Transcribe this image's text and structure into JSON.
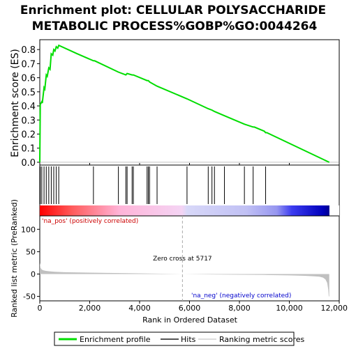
{
  "chart_data": {
    "type": "line",
    "title": "Enrichment plot: CELLULAR POLYSACCHARIDE\nMETABOLIC PROCESS%GOBP%GO:0044264",
    "colors": {
      "es_line": "#00dd00",
      "hits": "#000000",
      "metric_fill": "#c0c0c0",
      "pos_text": "#cc0000",
      "neg_text": "#0000cc",
      "zero_cross_line": "#aaaaaa"
    },
    "top_panel": {
      "ylabel": "Enrichment score (ES)",
      "ylim": [
        -0.02,
        0.87
      ],
      "yticks": [
        0.0,
        0.1,
        0.2,
        0.3,
        0.4,
        0.5,
        0.6,
        0.7,
        0.8
      ],
      "ytick_labels": [
        "0.0",
        "0.1",
        "0.2",
        "0.3",
        "0.4",
        "0.5",
        "0.6",
        "0.7",
        "0.8"
      ],
      "series": [
        {
          "name": "Enrichment profile",
          "x": [
            0,
            20,
            80,
            100,
            170,
            200,
            260,
            300,
            360,
            410,
            460,
            520,
            560,
            610,
            660,
            720,
            760,
            1500,
            2150,
            2200,
            3150,
            3450,
            3500,
            3700,
            3750,
            4300,
            4350,
            4400,
            4700,
            5900,
            6750,
            6900,
            7000,
            7400,
            8200,
            8550,
            8600,
            9000,
            9050,
            9100,
            11600
          ],
          "y": [
            0.0,
            0.41,
            0.43,
            0.42,
            0.53,
            0.52,
            0.62,
            0.61,
            0.67,
            0.66,
            0.77,
            0.76,
            0.8,
            0.79,
            0.82,
            0.81,
            0.83,
            0.77,
            0.72,
            0.72,
            0.64,
            0.62,
            0.63,
            0.62,
            0.62,
            0.58,
            0.58,
            0.57,
            0.54,
            0.45,
            0.38,
            0.37,
            0.36,
            0.33,
            0.27,
            0.25,
            0.25,
            0.22,
            0.21,
            0.21,
            0.0
          ]
        }
      ]
    },
    "hits": [
      20,
      80,
      170,
      260,
      360,
      460,
      560,
      660,
      760,
      2150,
      3150,
      3450,
      3500,
      3700,
      3750,
      4300,
      4350,
      4400,
      4700,
      5900,
      6750,
      6900,
      7000,
      7400,
      8200,
      8550,
      9050
    ],
    "rank_bar": {
      "stops": [
        {
          "x": 0,
          "color": "#ff0000"
        },
        {
          "x": 1300,
          "color": "#ff5c5c"
        },
        {
          "x": 3200,
          "color": "#ffb4d8"
        },
        {
          "x": 5700,
          "color": "#f4d4f4"
        },
        {
          "x": 5900,
          "color": "#d8d8f8"
        },
        {
          "x": 8300,
          "color": "#c0c0f4"
        },
        {
          "x": 9500,
          "color": "#9696f0"
        },
        {
          "x": 10100,
          "color": "#3c3cf0"
        },
        {
          "x": 11350,
          "color": "#0000bb"
        },
        {
          "x": 11550,
          "color": "#000099"
        }
      ]
    },
    "bottom_panel": {
      "ylabel": "Ranked list metric (PreRanked)",
      "ylim": [
        -60,
        130
      ],
      "yticks": [
        -50,
        0,
        50,
        100
      ],
      "ytick_labels": [
        "-50",
        "0",
        "50",
        "100"
      ],
      "metric_x": [
        0,
        30,
        80,
        150,
        250,
        400,
        600,
        1000,
        2000,
        3500,
        5717,
        7000,
        9000,
        10000,
        10600,
        11000,
        11200,
        11350,
        11450,
        11520,
        11560,
        11580,
        11600
      ],
      "metric_y": [
        25,
        14,
        10,
        8,
        7,
        6,
        5,
        4,
        3,
        2,
        0,
        -1,
        -2,
        -3,
        -4,
        -5,
        -6,
        -8,
        -12,
        -20,
        -35,
        -50,
        -50
      ],
      "zero_cross": 5717,
      "zero_cross_label": "Zero cross at 5717",
      "pos_label": "'na_pos' (positively correlated)",
      "neg_label": "'na_neg' (negatively correlated)"
    },
    "xlabel": "Rank in Ordered Dataset",
    "xlim": [
      0,
      12000
    ],
    "xticks": [
      0,
      2000,
      4000,
      6000,
      8000,
      10000,
      12000
    ],
    "xtick_labels": [
      "0",
      "2,000",
      "4,000",
      "6,000",
      "8,000",
      "10,000",
      "12,000"
    ],
    "legend": {
      "placement": "bottom",
      "items": [
        "Enrichment profile",
        "Hits",
        "Ranking metric scores"
      ]
    }
  }
}
